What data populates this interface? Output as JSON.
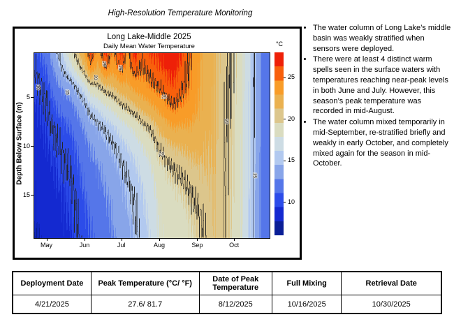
{
  "page_title": "High-Resolution Temperature Monitoring",
  "notes": {
    "items": [
      "The water column of Long Lake’s middle basin was weakly stratified when sensors were deployed.",
      "There were at least 4 distinct warm spells seen in the surface waters with temperatures reaching near-peak levels in both June and July. However, this season’s peak temperature was recorded in mid-August.",
      "The water column mixed temporarily in mid-September, re-stratified briefly and weakly in early October, and completely mixed again for the season in mid-October."
    ]
  },
  "summary_table": {
    "headers": [
      "Deployment Date",
      "Peak Temperature (°C/ °F)",
      "Date of Peak Temperature",
      "Full Mixing",
      "Retrieval Date"
    ],
    "rows": [
      [
        "4/21/2025",
        "27.6/ 81.7",
        "8/12/2025",
        "10/16/2025",
        "10/30/2025"
      ]
    ]
  },
  "chart_data": {
    "type": "heatmap",
    "title": "Long Lake-Middle 2025",
    "subtitle": "Daily Mean Water Temperature",
    "ylabel": "Depth Below Surface (m)",
    "xlabel": "",
    "x_ticks": [
      {
        "label": "May",
        "day": 10
      },
      {
        "label": "Jun",
        "day": 41
      },
      {
        "label": "Jul",
        "day": 71
      },
      {
        "label": "Aug",
        "day": 102
      },
      {
        "label": "Sep",
        "day": 133
      },
      {
        "label": "Oct",
        "day": 163
      }
    ],
    "y_ticks": [
      {
        "label": "5",
        "depth": 5
      },
      {
        "label": "10",
        "depth": 10
      },
      {
        "label": "15",
        "depth": 15
      }
    ],
    "x_domain_days": [
      0,
      192
    ],
    "depth_domain": [
      0.5,
      19.4
    ],
    "colorbar": {
      "label": "°C",
      "ticks": [
        10,
        15,
        20,
        25
      ],
      "domain": [
        6,
        28
      ],
      "colors": [
        "#0a1e96",
        "#1429d0",
        "#2c4ce9",
        "#5576e9",
        "#88a5e9",
        "#b2c9ef",
        "#cddce4",
        "#dadcc0",
        "#dcc68c",
        "#eab150",
        "#f89c28",
        "#f8600c",
        "#ee2008"
      ]
    },
    "contour_levels": [
      10,
      15,
      20,
      25
    ],
    "contour_labels": [
      {
        "text": "10",
        "day": 3,
        "depth": 4.0,
        "rot": 90
      },
      {
        "text": "15",
        "day": 27,
        "depth": 4.5,
        "rot": 90
      },
      {
        "text": "20",
        "day": 50,
        "depth": 3.0,
        "rot": 90
      },
      {
        "text": "25",
        "day": 57,
        "depth": 1.6,
        "rot": 90
      },
      {
        "text": "25",
        "day": 70,
        "depth": 2.0,
        "rot": 90
      },
      {
        "text": "25",
        "day": 106,
        "depth": 5.0,
        "rot": 0
      },
      {
        "text": "20",
        "day": 104,
        "depth": 10.8,
        "rot": 0
      },
      {
        "text": "20",
        "day": 157,
        "depth": 7.5,
        "rot": 90
      },
      {
        "text": "15",
        "day": 180,
        "depth": 13.0,
        "rot": 90
      }
    ],
    "x_days": [
      0,
      10,
      20,
      30,
      41,
      46,
      52,
      58,
      64,
      71,
      76,
      82,
      88,
      95,
      102,
      113,
      120,
      126,
      133,
      140,
      147,
      155,
      163,
      170,
      178,
      185,
      192
    ],
    "depths": [
      0.5,
      2,
      4,
      6,
      8,
      10,
      12,
      14,
      16,
      19.4
    ],
    "grid_temps_c": [
      [
        10.4,
        10.0,
        9.5,
        9.1,
        8.8,
        8.5,
        8.2,
        8.0,
        7.8,
        7.5
      ],
      [
        12.0,
        11.2,
        10.4,
        9.9,
        9.5,
        9.2,
        8.9,
        8.7,
        8.5,
        8.2
      ],
      [
        15.2,
        14.2,
        12.6,
        11.4,
        10.5,
        10.0,
        9.6,
        9.3,
        9.1,
        8.8
      ],
      [
        19.0,
        17.2,
        13.8,
        12.2,
        11.2,
        10.6,
        10.2,
        9.8,
        9.5,
        9.2
      ],
      [
        23.0,
        21.2,
        17.0,
        14.4,
        13.0,
        12.2,
        11.7,
        11.3,
        10.9,
        10.6
      ],
      [
        26.2,
        24.2,
        19.0,
        15.8,
        13.9,
        12.9,
        12.3,
        11.8,
        11.4,
        11.1
      ],
      [
        23.5,
        22.5,
        19.6,
        16.6,
        14.6,
        13.5,
        12.8,
        12.3,
        11.9,
        11.6
      ],
      [
        26.6,
        25.0,
        20.8,
        17.6,
        15.3,
        14.1,
        13.4,
        12.9,
        12.5,
        12.1
      ],
      [
        24.2,
        23.5,
        21.2,
        18.4,
        16.0,
        14.8,
        14.0,
        13.5,
        13.0,
        12.7
      ],
      [
        26.7,
        25.4,
        22.3,
        19.6,
        17.0,
        15.6,
        14.8,
        14.2,
        13.8,
        13.4
      ],
      [
        24.2,
        23.7,
        22.5,
        20.2,
        17.7,
        16.2,
        15.4,
        14.8,
        14.4,
        14.0
      ],
      [
        26.9,
        25.9,
        23.4,
        21.0,
        18.4,
        16.9,
        16.0,
        15.4,
        15.0,
        14.6
      ],
      [
        25.2,
        24.8,
        23.8,
        21.8,
        19.4,
        17.8,
        16.8,
        16.2,
        15.8,
        15.4
      ],
      [
        26.4,
        25.6,
        24.5,
        22.6,
        20.3,
        18.8,
        17.8,
        17.2,
        16.8,
        16.4
      ],
      [
        26.6,
        26.1,
        25.1,
        23.4,
        21.6,
        20.2,
        19.2,
        18.6,
        18.2,
        17.9
      ],
      [
        27.6,
        27.0,
        26.1,
        24.9,
        23.0,
        21.2,
        20.1,
        19.4,
        18.9,
        18.5
      ],
      [
        26.4,
        25.9,
        25.3,
        24.4,
        22.8,
        21.4,
        20.4,
        19.7,
        19.2,
        18.8
      ],
      [
        25.2,
        25.0,
        24.6,
        24.0,
        22.9,
        21.7,
        20.8,
        20.1,
        19.6,
        19.2
      ],
      [
        23.6,
        23.5,
        23.3,
        23.0,
        22.4,
        21.8,
        21.1,
        20.5,
        20.0,
        19.5
      ],
      [
        22.3,
        22.2,
        22.1,
        22.0,
        21.8,
        21.5,
        21.2,
        20.9,
        20.5,
        20.1
      ],
      [
        21.5,
        21.5,
        21.4,
        21.4,
        21.4,
        21.3,
        21.3,
        21.2,
        21.2,
        21.1
      ],
      [
        20.4,
        20.4,
        20.3,
        20.3,
        20.3,
        20.2,
        20.2,
        20.2,
        20.1,
        20.1
      ],
      [
        19.8,
        19.7,
        19.6,
        19.5,
        19.5,
        19.4,
        19.3,
        19.3,
        19.2,
        19.1
      ],
      [
        18.3,
        18.2,
        18.2,
        18.1,
        18.1,
        18.0,
        18.0,
        17.9,
        17.9,
        17.8
      ],
      [
        15.6,
        15.6,
        15.5,
        15.5,
        15.5,
        15.4,
        15.4,
        15.4,
        15.3,
        15.3
      ],
      [
        12.6,
        12.6,
        12.5,
        12.5,
        12.5,
        12.5,
        12.4,
        12.4,
        12.4,
        12.4
      ],
      [
        11.9,
        11.9,
        11.9,
        11.8,
        11.8,
        11.8,
        11.8,
        11.7,
        11.7,
        11.7
      ]
    ]
  }
}
